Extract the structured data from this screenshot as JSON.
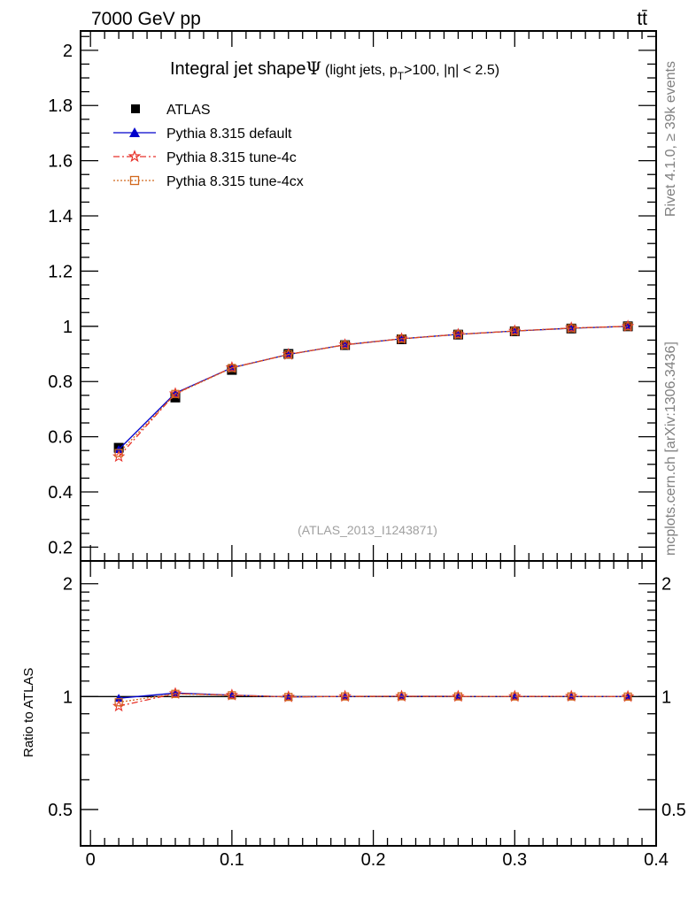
{
  "header": {
    "energy_label": "7000 GeV pp",
    "process_label": "tt̄"
  },
  "side": {
    "rivet_label": "Rivet 4.1.0, ≥ 39k events",
    "source_label": "mcplots.cern.ch [arXiv:1306.3436]"
  },
  "chart_data": {
    "type": "line",
    "title_main": "Integral jet shape",
    "title_symbol": "Ψ",
    "title_detail": "(light jets, p",
    "title_sub": "T",
    "title_rest": ">100, |η| < 2.5)",
    "analysis_label": "(ATLAS_2013_I1243871)",
    "ratio_ylabel": "Ratio to ATLAS",
    "xlim": [
      -0.007,
      0.4
    ],
    "main_ylim": [
      0.15,
      2.07
    ],
    "ratio_ylim": [
      0.4,
      2.3
    ],
    "x_ticks": [
      {
        "v": 0,
        "label": "0"
      },
      {
        "v": 0.1,
        "label": "0.1"
      },
      {
        "v": 0.2,
        "label": "0.2"
      },
      {
        "v": 0.3,
        "label": "0.3"
      },
      {
        "v": 0.4,
        "label": "0.4"
      }
    ],
    "main_y_ticks": [
      {
        "v": 0.2,
        "label": "0.2"
      },
      {
        "v": 0.4,
        "label": "0.4"
      },
      {
        "v": 0.6,
        "label": "0.6"
      },
      {
        "v": 0.8,
        "label": "0.8"
      },
      {
        "v": 1.0,
        "label": "1"
      },
      {
        "v": 1.2,
        "label": "1.2"
      },
      {
        "v": 1.4,
        "label": "1.4"
      },
      {
        "v": 1.6,
        "label": "1.6"
      },
      {
        "v": 1.8,
        "label": "1.8"
      },
      {
        "v": 2.0,
        "label": "2"
      }
    ],
    "ratio_y_ticks": [
      {
        "v": 0.5,
        "label": "0.5"
      },
      {
        "v": 1,
        "label": "1"
      },
      {
        "v": 2,
        "label": "2"
      }
    ],
    "x": [
      0.02,
      0.06,
      0.1,
      0.14,
      0.18,
      0.22,
      0.26,
      0.3,
      0.34,
      0.38
    ],
    "data": {
      "name": "ATLAS",
      "values": [
        0.56,
        0.742,
        0.842,
        0.9,
        0.932,
        0.953,
        0.97,
        0.982,
        0.992,
        1.0
      ]
    },
    "series": [
      {
        "name": "Pythia 8.315 default",
        "color": "#0000cc",
        "values": [
          0.554,
          0.758,
          0.85,
          0.898,
          0.933,
          0.955,
          0.971,
          0.983,
          0.993,
          1.0
        ],
        "ratio": [
          0.99,
          1.022,
          1.009,
          0.998,
          1.001,
          1.002,
          1.001,
          1.001,
          1.001,
          1.0
        ]
      },
      {
        "name": "Pythia 8.315 tune-4c",
        "color": "#e8322a",
        "values": [
          0.528,
          0.756,
          0.85,
          0.898,
          0.933,
          0.955,
          0.971,
          0.983,
          0.994,
          1.0
        ],
        "ratio": [
          0.943,
          1.019,
          1.009,
          0.998,
          1.001,
          1.002,
          1.001,
          1.001,
          1.002,
          1.0
        ]
      },
      {
        "name": "Pythia 8.315 tune-4cx",
        "color": "#d2691e",
        "values": [
          0.541,
          0.755,
          0.849,
          0.898,
          0.933,
          0.955,
          0.971,
          0.983,
          0.993,
          1.0
        ],
        "ratio": [
          0.966,
          1.017,
          1.008,
          0.998,
          1.001,
          1.002,
          1.001,
          1.001,
          1.001,
          1.0
        ]
      }
    ]
  }
}
